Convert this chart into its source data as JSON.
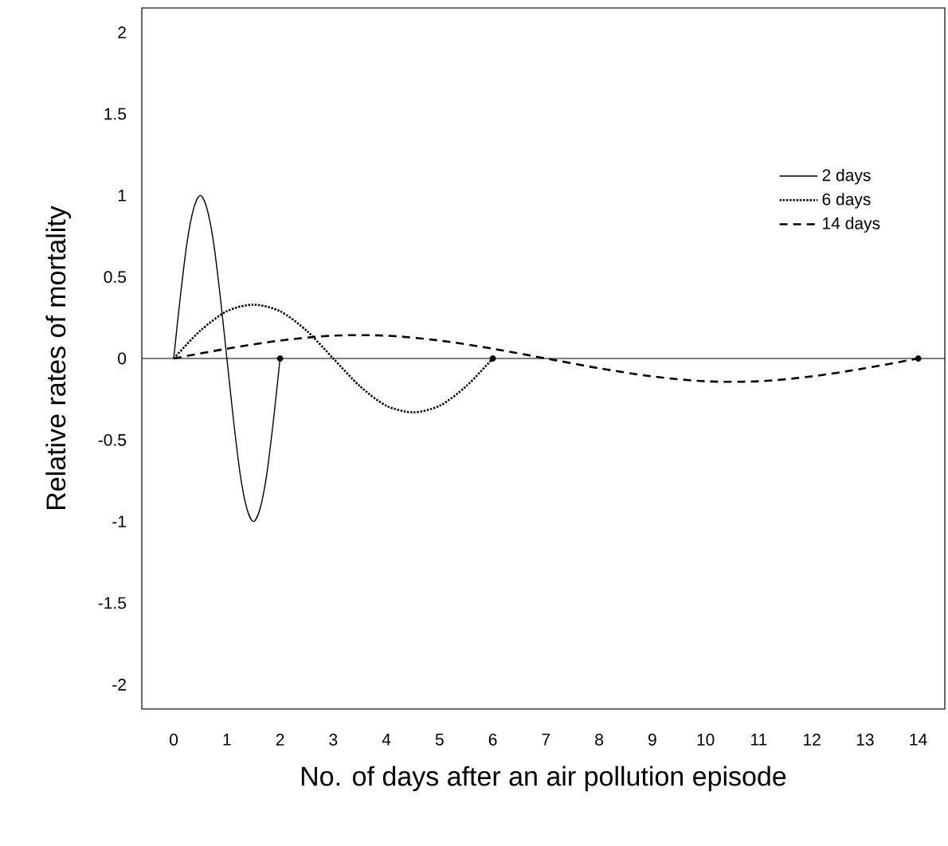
{
  "chart_data": {
    "type": "line",
    "xlabel": "No. of days after an air pollution episode",
    "ylabel": "Relative rates of mortality",
    "xlim": [
      -0.6,
      14.5
    ],
    "ylim": [
      -2.15,
      2.15
    ],
    "xticks": [
      0,
      1,
      2,
      3,
      4,
      5,
      6,
      7,
      8,
      9,
      10,
      11,
      12,
      13,
      14
    ],
    "yticks": [
      -2,
      -1.5,
      -1,
      -0.5,
      0,
      0.5,
      1,
      1.5,
      2
    ],
    "legend": "top right",
    "grid": false,
    "ref_lines": [
      {
        "axis": "y",
        "value": 0,
        "color": "#000000"
      }
    ],
    "series": [
      {
        "name": "2 days",
        "color": "#000000",
        "line_style": "solid",
        "x": [
          0,
          0.125,
          0.25,
          0.375,
          0.5,
          0.625,
          0.75,
          0.875,
          1,
          1.125,
          1.25,
          1.375,
          1.5,
          1.625,
          1.75,
          1.875,
          2
        ],
        "values": [
          0,
          0.38,
          0.71,
          0.92,
          1,
          0.92,
          0.71,
          0.38,
          0,
          -0.38,
          -0.71,
          -0.92,
          -1,
          -0.92,
          -0.71,
          -0.38,
          0
        ]
      },
      {
        "name": "6 days",
        "color": "#000000",
        "line_style": "dotted",
        "x": [
          0,
          0.5,
          1,
          1.5,
          2,
          2.5,
          3,
          3.5,
          4,
          4.5,
          5,
          5.5,
          6
        ],
        "values": [
          0,
          0.17,
          0.29,
          0.33,
          0.29,
          0.17,
          0,
          -0.17,
          -0.29,
          -0.33,
          -0.29,
          -0.17,
          0
        ]
      },
      {
        "name": "14 days",
        "color": "#000000",
        "line_style": "dashed",
        "x": [
          0,
          1,
          2,
          3,
          4,
          5,
          6,
          7,
          8,
          9,
          10,
          11,
          12,
          13,
          14
        ],
        "values": [
          0,
          0.06,
          0.11,
          0.14,
          0.14,
          0.11,
          0.06,
          0,
          -0.06,
          -0.11,
          -0.14,
          -0.14,
          -0.11,
          -0.06,
          0
        ]
      },
      {
        "type": "scatter",
        "marker": "circle",
        "color": "#000000",
        "x": [
          2,
          6,
          14
        ],
        "values": [
          0,
          0,
          0
        ]
      }
    ]
  }
}
